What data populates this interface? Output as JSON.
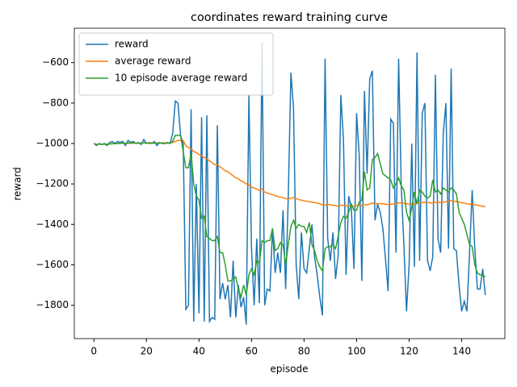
{
  "chart_data": {
    "type": "line",
    "title": "coordinates reward training curve",
    "xlabel": "episode",
    "ylabel": "reward",
    "xlim": [
      -7.45,
      156.45
    ],
    "xticks": [
      0,
      20,
      40,
      60,
      80,
      100,
      120,
      140
    ],
    "ylim": [
      -1965,
      -430
    ],
    "yticks": [
      {
        "value": -1800,
        "label": "−1800"
      },
      {
        "value": -1600,
        "label": "−1600"
      },
      {
        "value": -1400,
        "label": "−1400"
      },
      {
        "value": -1200,
        "label": "−1200"
      },
      {
        "value": -1000,
        "label": "−1000"
      },
      {
        "value": -800,
        "label": "−800"
      },
      {
        "value": -600,
        "label": "−600"
      }
    ],
    "legend": "upper left",
    "grid": false,
    "series": [
      {
        "name": "reward",
        "color": "#1f77b4",
        "values": [
          -1000,
          -1010,
          -1000,
          -1005,
          -1000,
          -1010,
          -995,
          -990,
          -1000,
          -990,
          -995,
          -990,
          -1010,
          -985,
          -995,
          -990,
          -1000,
          -995,
          -1005,
          -980,
          -1000,
          -995,
          -1000,
          -990,
          -1010,
          -995,
          -1000,
          -1000,
          -995,
          -1000,
          -950,
          -790,
          -800,
          -960,
          -1000,
          -1820,
          -1800,
          -830,
          -1880,
          -1200,
          -1840,
          -870,
          -1880,
          -860,
          -1880,
          -1860,
          -1870,
          -910,
          -1770,
          -1690,
          -1770,
          -1700,
          -1860,
          -1580,
          -1860,
          -1700,
          -1810,
          -1760,
          -1895,
          -760,
          -1520,
          -1800,
          -1470,
          -1790,
          -500,
          -1800,
          -1720,
          -1730,
          -1420,
          -1640,
          -1540,
          -1640,
          -1330,
          -1720,
          -1260,
          -650,
          -830,
          -1600,
          -1770,
          -1440,
          -1620,
          -1640,
          -1520,
          -1400,
          -1560,
          -1650,
          -1760,
          -1850,
          -580,
          -1470,
          -1580,
          -1440,
          -1670,
          -1550,
          -760,
          -980,
          -1650,
          -1260,
          -1320,
          -1620,
          -850,
          -1060,
          -1680,
          -740,
          -1150,
          -680,
          -640,
          -1380,
          -1300,
          -1340,
          -1420,
          -1570,
          -1730,
          -880,
          -900,
          -1540,
          -580,
          -1210,
          -1500,
          -1830,
          -1600,
          -1000,
          -1610,
          -550,
          -1580,
          -850,
          -800,
          -1580,
          -1630,
          -1560,
          -660,
          -1470,
          -1540,
          -950,
          -800,
          -1520,
          -630,
          -1520,
          -1530,
          -1700,
          -1830,
          -1780,
          -1830,
          -1540,
          -1230,
          -1520,
          -1720,
          -1720,
          -1620,
          -1750
        ]
      },
      {
        "name": "average reward",
        "color": "#ff7f0e",
        "values": [
          -1000,
          -1005,
          -1003,
          -1004,
          -1003,
          -1004,
          -1002,
          -1001,
          -1001,
          -1000,
          -999,
          -999,
          -1000,
          -999,
          -999,
          -998,
          -998,
          -998,
          -998,
          -997,
          -997,
          -997,
          -997,
          -997,
          -997,
          -997,
          -997,
          -997,
          -997,
          -997,
          -995,
          -990,
          -985,
          -984,
          -985,
          -1010,
          -1020,
          -1027,
          -1040,
          -1045,
          -1055,
          -1060,
          -1070,
          -1075,
          -1085,
          -1095,
          -1105,
          -1105,
          -1115,
          -1125,
          -1135,
          -1140,
          -1150,
          -1160,
          -1170,
          -1175,
          -1185,
          -1190,
          -1200,
          -1205,
          -1215,
          -1220,
          -1225,
          -1232,
          -1225,
          -1240,
          -1245,
          -1250,
          -1253,
          -1258,
          -1262,
          -1265,
          -1268,
          -1272,
          -1275,
          -1270,
          -1268,
          -1272,
          -1278,
          -1280,
          -1283,
          -1286,
          -1288,
          -1290,
          -1292,
          -1295,
          -1298,
          -1303,
          -1305,
          -1300,
          -1303,
          -1305,
          -1308,
          -1310,
          -1305,
          -1305,
          -1308,
          -1308,
          -1308,
          -1310,
          -1305,
          -1305,
          -1308,
          -1303,
          -1303,
          -1300,
          -1295,
          -1297,
          -1297,
          -1297,
          -1298,
          -1300,
          -1302,
          -1300,
          -1298,
          -1300,
          -1293,
          -1293,
          -1295,
          -1298,
          -1300,
          -1298,
          -1300,
          -1293,
          -1295,
          -1292,
          -1290,
          -1292,
          -1293,
          -1295,
          -1290,
          -1290,
          -1292,
          -1290,
          -1288,
          -1288,
          -1283,
          -1285,
          -1287,
          -1290,
          -1293,
          -1295,
          -1298,
          -1300,
          -1300,
          -1302,
          -1305,
          -1308,
          -1310,
          -1313
        ]
      },
      {
        "name": "10 episode average reward",
        "color": "#2ca02c",
        "values": [
          -1000,
          -1005,
          -1003,
          -1004,
          -1003,
          -1004,
          -1002,
          -1001,
          -1001,
          -1000,
          -999,
          -998,
          -999,
          -998,
          -997,
          -997,
          -998,
          -998,
          -999,
          -997,
          -998,
          -999,
          -998,
          -998,
          -999,
          -998,
          -998,
          -999,
          -998,
          -997,
          -990,
          -960,
          -960,
          -960,
          -1040,
          -1120,
          -1120,
          -1050,
          -1200,
          -1260,
          -1280,
          -1370,
          -1360,
          -1460,
          -1470,
          -1480,
          -1480,
          -1460,
          -1540,
          -1540,
          -1600,
          -1680,
          -1680,
          -1670,
          -1660,
          -1720,
          -1760,
          -1700,
          -1750,
          -1650,
          -1620,
          -1650,
          -1580,
          -1590,
          -1480,
          -1490,
          -1480,
          -1480,
          -1420,
          -1530,
          -1520,
          -1490,
          -1500,
          -1600,
          -1500,
          -1410,
          -1380,
          -1420,
          -1400,
          -1410,
          -1410,
          -1440,
          -1390,
          -1500,
          -1530,
          -1580,
          -1610,
          -1630,
          -1520,
          -1510,
          -1510,
          -1500,
          -1520,
          -1460,
          -1390,
          -1360,
          -1370,
          -1340,
          -1300,
          -1330,
          -1330,
          -1290,
          -1280,
          -1140,
          -1230,
          -1220,
          -1080,
          -1070,
          -1050,
          -1100,
          -1150,
          -1160,
          -1170,
          -1180,
          -1220,
          -1200,
          -1170,
          -1210,
          -1230,
          -1340,
          -1380,
          -1320,
          -1240,
          -1300,
          -1230,
          -1240,
          -1260,
          -1270,
          -1260,
          -1180,
          -1240,
          -1230,
          -1250,
          -1220,
          -1230,
          -1240,
          -1220,
          -1230,
          -1250,
          -1340,
          -1370,
          -1400,
          -1450,
          -1500,
          -1510,
          -1600,
          -1640,
          -1650,
          -1650,
          -1660
        ]
      }
    ]
  }
}
